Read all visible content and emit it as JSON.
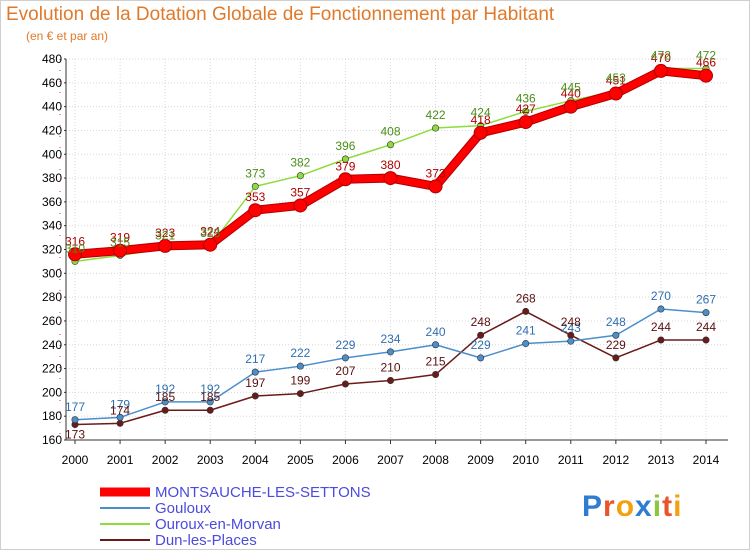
{
  "chart_data": {
    "type": "line",
    "title": "Evolution de la Dotation Globale de Fonctionnement par Habitant",
    "subtitle": "(en € et par an)",
    "xlabel": "",
    "ylabel": "",
    "ylim": [
      160,
      480
    ],
    "yticks": [
      "160",
      "180",
      "200",
      "220",
      "240",
      "260",
      "280",
      "300",
      "320",
      "340",
      "360",
      "380",
      "400",
      "420",
      "440",
      "460",
      "480"
    ],
    "categories": [
      "2000",
      "2001",
      "2002",
      "2003",
      "2004",
      "2005",
      "2006",
      "2007",
      "2008",
      "2009",
      "2010",
      "2011",
      "2012",
      "2013",
      "2014"
    ],
    "legend_position": "bottom-left",
    "series": [
      {
        "name": "MONTSAUCHE-LES-SETTONS",
        "color": "#ff0000",
        "bold": true,
        "values": [
          316,
          319,
          323,
          324,
          353,
          357,
          379,
          380,
          373,
          418,
          427,
          440,
          451,
          470,
          466
        ],
        "labels": [
          "316",
          "319",
          "323",
          "324",
          "353",
          "357",
          "379",
          "380",
          "373",
          "418",
          "427",
          "440",
          "451",
          "470",
          "466"
        ]
      },
      {
        "name": "Gouloux",
        "color": "#4a8fcc",
        "bold": false,
        "values": [
          177,
          179,
          192,
          192,
          217,
          222,
          229,
          234,
          240,
          229,
          241,
          243,
          248,
          270,
          267
        ],
        "labels": [
          "177",
          "179",
          "192",
          "192",
          "217",
          "222",
          "229",
          "234",
          "240",
          "229",
          "241",
          "243",
          "248",
          "270",
          "267"
        ]
      },
      {
        "name": "Ouroux-en-Morvan",
        "color": "#8edc3c",
        "bold": false,
        "values": [
          310,
          315,
          321,
          323,
          373,
          382,
          396,
          408,
          422,
          424,
          436,
          445,
          453,
          472,
          472
        ],
        "labels": [
          "310",
          "315",
          "321",
          "323",
          "373",
          "382",
          "396",
          "408",
          "422",
          "424",
          "436",
          "445",
          "453",
          "472",
          "472"
        ]
      },
      {
        "name": "Dun-les-Places",
        "color": "#6b1a1a",
        "bold": false,
        "values": [
          173,
          174,
          185,
          185,
          197,
          199,
          207,
          210,
          215,
          248,
          268,
          248,
          229,
          244,
          244
        ],
        "labels": [
          "173",
          "174",
          "185",
          "185",
          "197",
          "199",
          "207",
          "210",
          "215",
          "248",
          "268",
          "248",
          "229",
          "244",
          "244"
        ]
      }
    ]
  },
  "brand": {
    "letters": [
      "P",
      "r",
      "o",
      "x",
      "i",
      "t",
      "i"
    ],
    "colors": [
      "#2e7dd1",
      "#e8542c",
      "#f2a10f",
      "#2e7dd1",
      "#8cc63f",
      "#e8542c",
      "#f2a10f"
    ]
  }
}
